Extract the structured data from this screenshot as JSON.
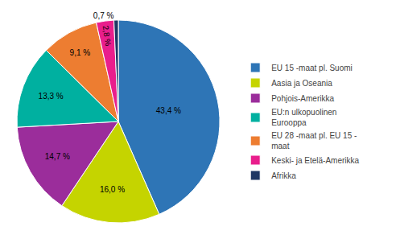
{
  "chart_data": {
    "type": "pie",
    "categories": [
      "EU 15 -maat pl. Suomi",
      "Aasia ja Oseania",
      "Pohjois-Amerikka",
      "EU:n ulkopuolinen\nEurooppa",
      "EU 28 -maat pl. EU 15 -\nmaat",
      "Keski- ja Etelä-Amerikka",
      "Afrikka"
    ],
    "values": [
      43.4,
      16.0,
      14.7,
      13.3,
      9.1,
      2.8,
      0.7
    ],
    "value_labels": [
      "43,4 %",
      "16,0 %",
      "14,7 %",
      "13,3 %",
      "9,1 %",
      "2,8 %",
      "0,7 %"
    ],
    "colors": [
      "#2e75b6",
      "#c5d400",
      "#9b2d9b",
      "#00b0a0",
      "#ed7d31",
      "#e91e8c",
      "#1f3864"
    ],
    "data_labels": true,
    "legend": "right"
  }
}
